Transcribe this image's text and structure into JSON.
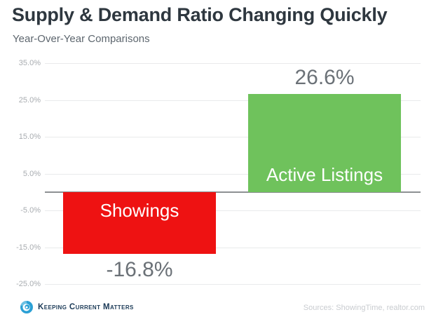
{
  "header": {
    "title": "Supply & Demand Ratio Changing Quickly",
    "subtitle": "Year-Over-Year Comparisons"
  },
  "chart_data": {
    "type": "bar",
    "title": "Supply & Demand Ratio Changing Quickly",
    "subtitle": "Year-Over-Year Comparisons",
    "categories": [
      "Showings",
      "Active Listings"
    ],
    "values": [
      -16.8,
      26.6
    ],
    "value_labels": [
      "-16.8%",
      "26.6%"
    ],
    "bar_colors": [
      "#ee1212",
      "#6fc25c"
    ],
    "category_label_color": "#ffffff",
    "category_label_positions": [
      "inside-top",
      "inside-bottom"
    ],
    "value_label_positions": [
      "below-bar",
      "above-bar"
    ],
    "xlabel": "",
    "ylabel": "",
    "ylim": [
      -25,
      35
    ],
    "yticks": [
      35,
      25,
      15,
      5,
      -5,
      -15,
      -25
    ],
    "ytick_labels": [
      "35.0%",
      "25.0%",
      "15.0%",
      "5.0%",
      "-5.0%",
      "-15.0%",
      "-25.0%"
    ],
    "grid": true,
    "legend": false
  },
  "footer": {
    "logo_text": "Keeping Current Matters",
    "sources": "Sources: ShowingTime,  realtor.com"
  },
  "colors": {
    "negative_bar": "#ee1212",
    "positive_bar": "#6fc25c",
    "title": "#2e373f",
    "subtitle": "#5d666e",
    "axis_label": "#a8acb0",
    "value_label": "#6b7177",
    "gridline": "#e9eaeb",
    "zero_line": "#8d9093",
    "sources_text": "#c9ccd0",
    "logo_blue": "#2ba0d5",
    "logo_navy": "#1b3a57"
  }
}
